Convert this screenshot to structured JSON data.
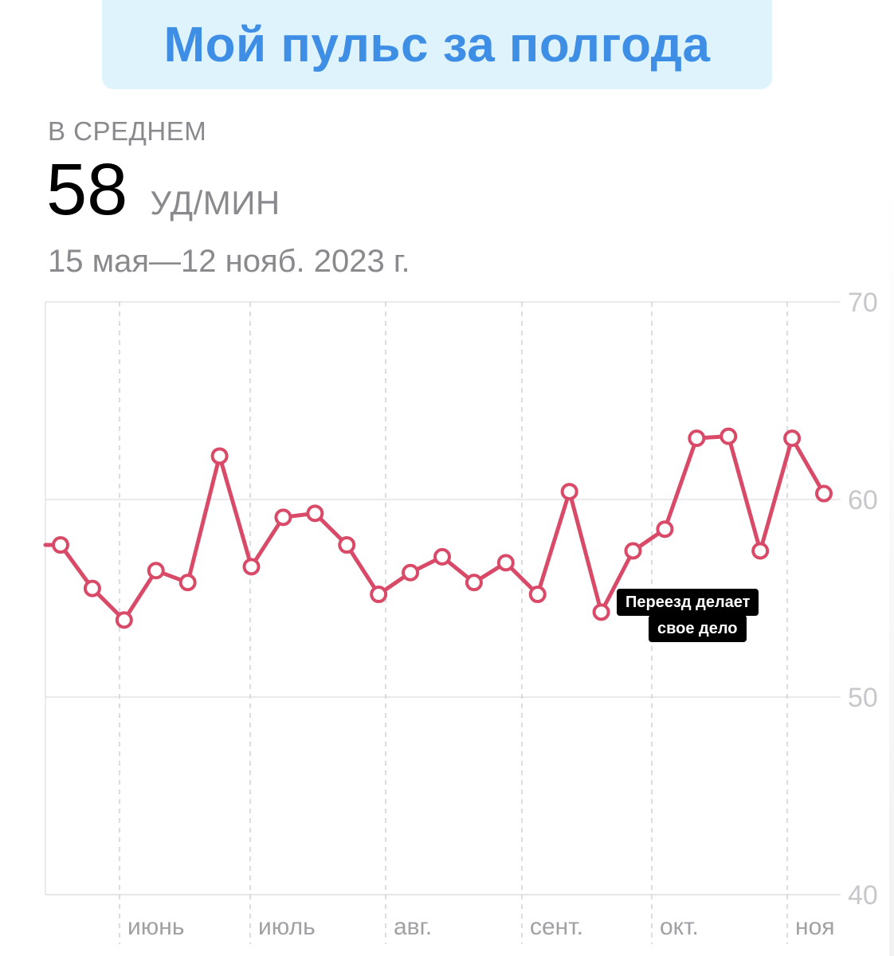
{
  "title": "Мой пульс за полгода",
  "summary": {
    "avg_label": "В СРЕДНЕМ",
    "avg_value": "58",
    "avg_unit": "УД/МИН",
    "date_range": "15 мая—12 нояб. 2023 г."
  },
  "annotation": {
    "line1": "Переезд делает",
    "line2": "свое дело"
  },
  "chart_data": {
    "type": "line",
    "title": "",
    "xlabel": "",
    "ylabel": "",
    "ylim": [
      40,
      70
    ],
    "yticks": [
      40,
      50,
      60,
      70
    ],
    "x_month_labels": [
      "июнь",
      "июль",
      "авг.",
      "сент.",
      "окт.",
      "ноя"
    ],
    "grid": true,
    "line_color": "#d94a68",
    "series": [
      {
        "values": [
          57.7,
          55.5,
          53.9,
          56.4,
          55.8,
          62.2,
          56.6,
          59.1,
          59.3,
          57.7,
          55.2,
          56.3,
          57.1,
          55.8,
          56.8,
          55.2,
          60.4,
          54.3,
          57.4,
          58.5,
          63.1,
          63.2,
          57.4,
          63.1,
          60.3
        ]
      }
    ]
  },
  "colors": {
    "title_text": "#3e8ee6",
    "title_bg": "#dff3fd",
    "line": "#d94a68",
    "muted_text": "#8a8a8e",
    "grid": "#e3e3e6"
  }
}
